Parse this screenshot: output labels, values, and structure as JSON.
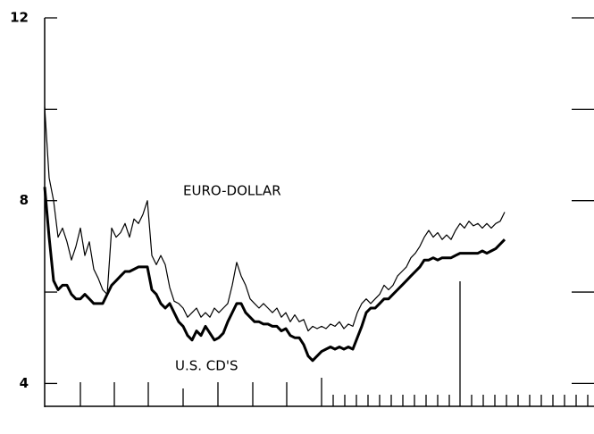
{
  "chart_data": {
    "type": "line",
    "annotations": [
      "EURO-DOLLAR",
      "U.S. CD'S"
    ],
    "series": [
      {
        "name": "EURO-DOLLAR",
        "color": "#000000",
        "line_width": 1.2,
        "values": [
          10.05,
          8.5,
          8.0,
          7.2,
          7.4,
          7.1,
          6.7,
          7.0,
          7.4,
          6.8,
          7.1,
          6.5,
          6.3,
          6.05,
          5.95,
          7.4,
          7.2,
          7.3,
          7.5,
          7.2,
          7.6,
          7.5,
          7.7,
          8.0,
          6.8,
          6.6,
          6.8,
          6.6,
          6.1,
          5.8,
          5.75,
          5.65,
          5.45,
          5.55,
          5.65,
          5.45,
          5.55,
          5.45,
          5.65,
          5.55,
          5.65,
          5.75,
          6.15,
          6.65,
          6.35,
          6.15,
          5.85,
          5.75,
          5.65,
          5.75,
          5.65,
          5.55,
          5.65,
          5.45,
          5.55,
          5.35,
          5.5,
          5.35,
          5.4,
          5.15,
          5.25,
          5.2,
          5.25,
          5.2,
          5.3,
          5.25,
          5.35,
          5.2,
          5.3,
          5.25,
          5.55,
          5.75,
          5.85,
          5.75,
          5.85,
          5.95,
          6.15,
          6.05,
          6.15,
          6.35,
          6.45,
          6.55,
          6.75,
          6.85,
          7.0,
          7.2,
          7.35,
          7.2,
          7.3,
          7.15,
          7.25,
          7.15,
          7.35,
          7.5,
          7.4,
          7.55,
          7.45,
          7.5,
          7.4,
          7.5,
          7.4,
          7.5,
          7.55,
          7.75
        ]
      },
      {
        "name": "U.S. CD'S",
        "color": "#000000",
        "line_width": 3,
        "values": [
          8.3,
          7.2,
          6.25,
          6.05,
          6.15,
          6.15,
          5.95,
          5.85,
          5.85,
          5.95,
          5.85,
          5.75,
          5.75,
          5.75,
          5.95,
          6.15,
          6.25,
          6.35,
          6.45,
          6.45,
          6.5,
          6.55,
          6.55,
          6.55,
          6.05,
          5.95,
          5.75,
          5.65,
          5.75,
          5.55,
          5.35,
          5.25,
          5.05,
          4.95,
          5.15,
          5.05,
          5.25,
          5.1,
          4.95,
          5.0,
          5.1,
          5.35,
          5.55,
          5.75,
          5.75,
          5.55,
          5.45,
          5.35,
          5.35,
          5.3,
          5.3,
          5.25,
          5.25,
          5.15,
          5.2,
          5.05,
          5.0,
          5.0,
          4.85,
          4.6,
          4.5,
          4.6,
          4.7,
          4.75,
          4.8,
          4.75,
          4.8,
          4.75,
          4.8,
          4.75,
          5.0,
          5.25,
          5.55,
          5.65,
          5.65,
          5.75,
          5.85,
          5.85,
          5.95,
          6.05,
          6.15,
          6.25,
          6.35,
          6.45,
          6.55,
          6.7,
          6.7,
          6.75,
          6.7,
          6.75,
          6.75,
          6.75,
          6.8,
          6.85,
          6.85,
          6.85,
          6.85,
          6.85,
          6.9,
          6.85,
          6.9,
          6.95,
          7.05,
          7.15
        ]
      }
    ],
    "ylim": [
      3.5,
      12
    ],
    "yticks": [
      4,
      8,
      12
    ],
    "yminor_ticks": [
      6,
      10
    ],
    "right_axis_ticks": true,
    "grid": false
  }
}
